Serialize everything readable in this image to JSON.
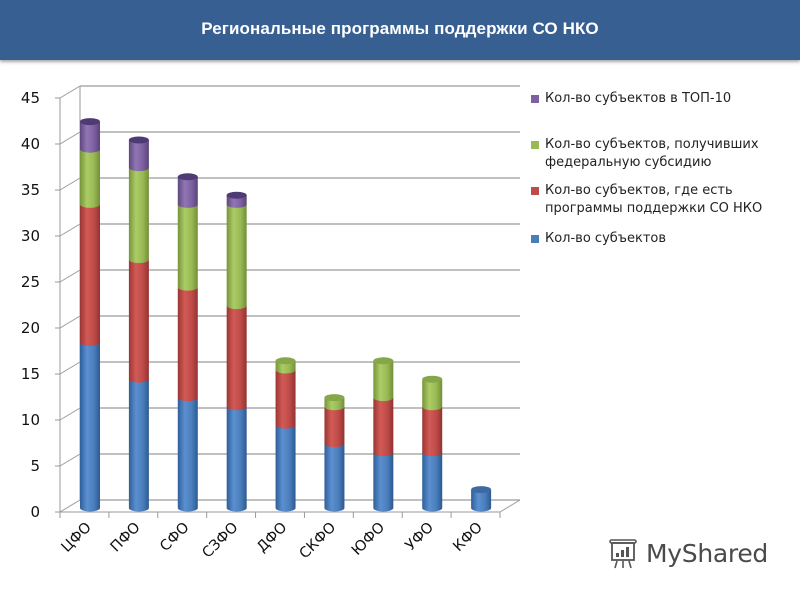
{
  "header": {
    "title": "Региональные программы поддержки СО НКО"
  },
  "colors": {
    "header_bg": "#385f92",
    "blue": "#4a7ebb",
    "red": "#be4b48",
    "green": "#98b954",
    "purple": "#7d60a0"
  },
  "legend": {
    "items": [
      {
        "label_line1": "Кол-во субъектов в ТОП-10",
        "label_line2": "",
        "color": "#7d60a0"
      },
      {
        "label_line1": "Кол-во субъектов, получивших",
        "label_line2": "федеральную субсидию",
        "color": "#98b954"
      },
      {
        "label_line1": "Кол-во субъектов, где есть",
        "label_line2": "программы поддержки СО НКО",
        "color": "#be4b48"
      },
      {
        "label_line1": "Кол-во субъектов",
        "label_line2": "",
        "color": "#4a7ebb"
      }
    ]
  },
  "watermark": {
    "text": "MyShared"
  },
  "chart_data": {
    "type": "bar",
    "stacked": true,
    "style": "3d-cylinder",
    "title": "Региональные программы поддержки СО НКО",
    "xlabel": "",
    "ylabel": "",
    "ylim": [
      0,
      45
    ],
    "yticks": [
      0,
      5,
      10,
      15,
      20,
      25,
      30,
      35,
      40,
      45
    ],
    "grid": true,
    "legend_position": "right",
    "categories": [
      "ЦФО",
      "ПФО",
      "СФО",
      "СЗФО",
      "ДФО",
      "СКФО",
      "ЮФО",
      "УФО",
      "КФО"
    ],
    "series": [
      {
        "name": "Кол-во субъектов",
        "color": "#4a7ebb",
        "values": [
          18,
          14,
          12,
          11,
          9,
          7,
          6,
          6,
          2
        ]
      },
      {
        "name": "Кол-во субъектов, где есть программы поддержки СО НКО",
        "color": "#be4b48",
        "values": [
          15,
          13,
          12,
          11,
          6,
          4,
          6,
          5,
          0
        ]
      },
      {
        "name": "Кол-во субъектов, получивших федеральную субсидию",
        "color": "#98b954",
        "values": [
          6,
          10,
          9,
          11,
          1,
          1,
          4,
          3,
          0
        ]
      },
      {
        "name": "Кол-во субъектов в ТОП-10",
        "color": "#7d60a0",
        "values": [
          3,
          3,
          3,
          1,
          0,
          0,
          0,
          0,
          0
        ]
      }
    ]
  }
}
